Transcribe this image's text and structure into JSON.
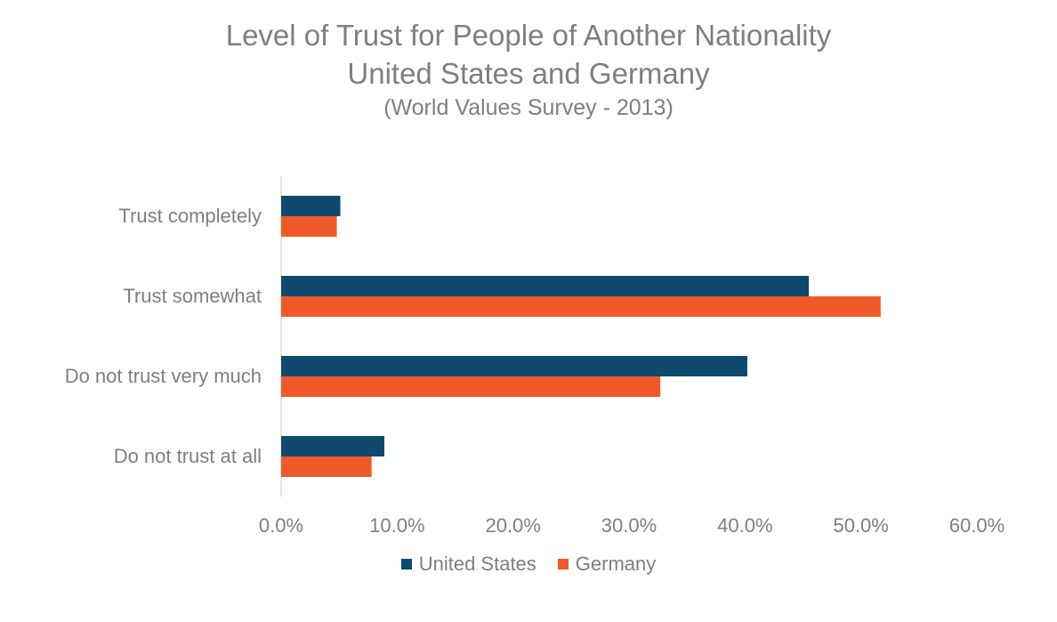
{
  "chart_data": {
    "type": "bar",
    "orientation": "horizontal",
    "title": "Level of Trust for People of Another Nationality",
    "title_line2": "United States and Germany",
    "subtitle": "(World Values Survey - 2013)",
    "categories": [
      "Trust completely",
      "Trust somewhat",
      "Do not trust very much",
      "Do not trust at all"
    ],
    "series": [
      {
        "name": "United States",
        "color": "#0e4a6e",
        "values": [
          5.1,
          45.5,
          40.2,
          8.9
        ]
      },
      {
        "name": "Germany",
        "color": "#f05a28",
        "values": [
          4.8,
          51.7,
          32.7,
          7.8
        ]
      }
    ],
    "xlim": [
      0,
      60
    ],
    "xticks": [
      "0.0%",
      "10.0%",
      "20.0%",
      "30.0%",
      "40.0%",
      "50.0%",
      "60.0%"
    ],
    "xticks_values": [
      0,
      10,
      20,
      30,
      40,
      50,
      60
    ],
    "xlabel": "",
    "ylabel": "",
    "grid": false,
    "legend": "bottom-center"
  }
}
